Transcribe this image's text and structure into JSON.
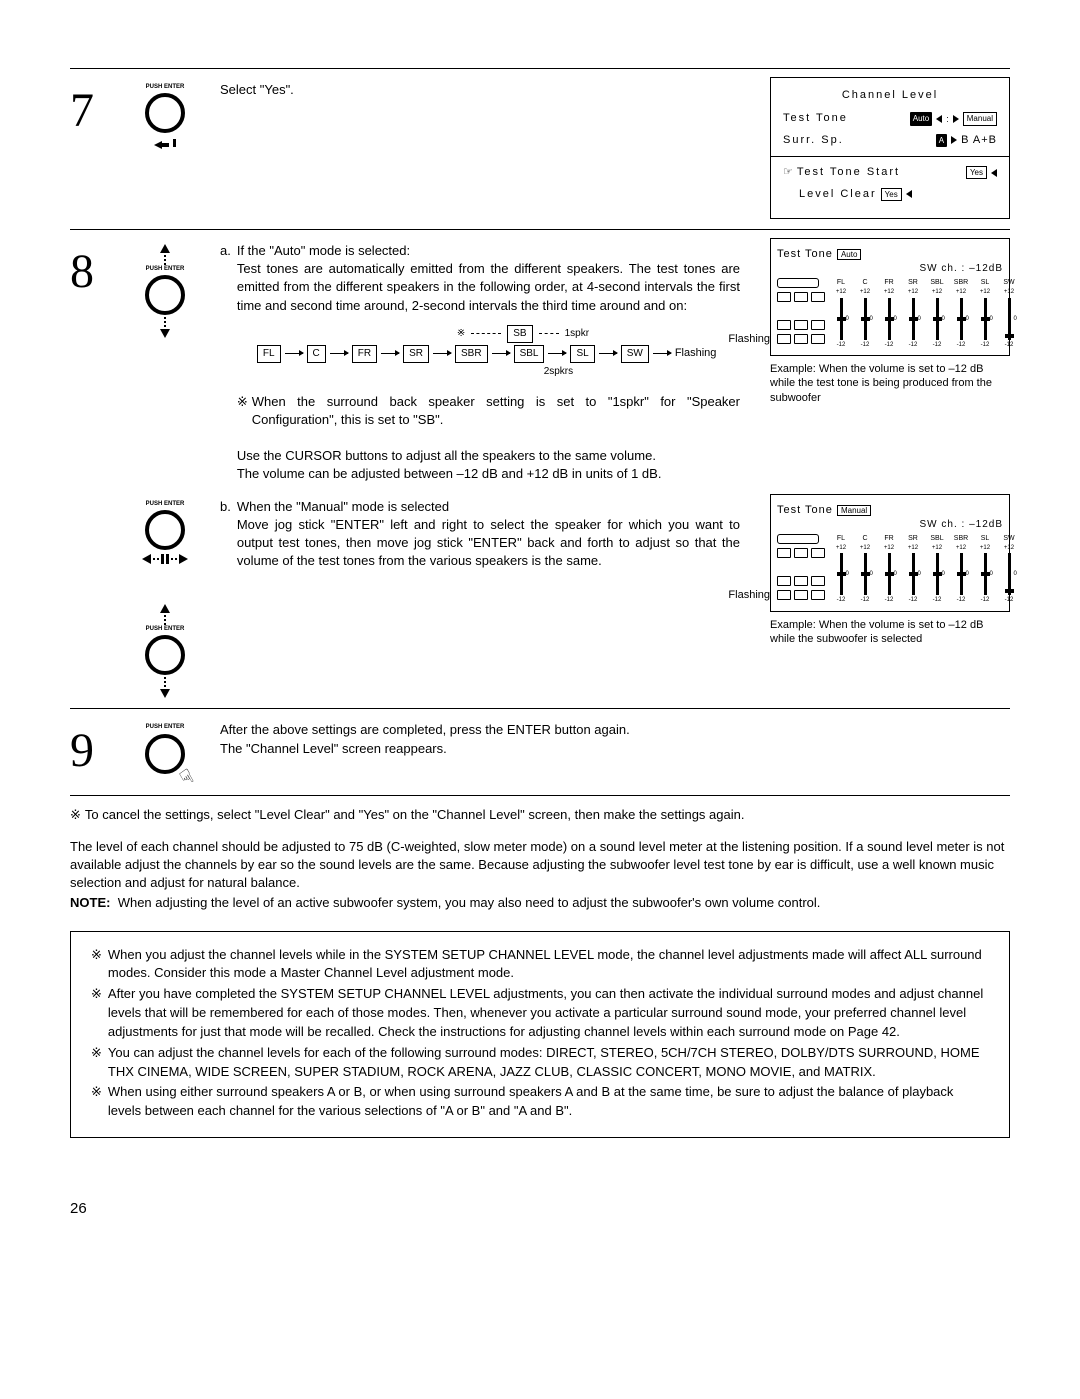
{
  "page_number": "26",
  "step7": {
    "num": "7",
    "text": "Select \"Yes\".",
    "screen": {
      "title": "Channel Level",
      "row1_label": "Test Tone",
      "row1_auto": "Auto",
      "row1_manual": "Manual",
      "row2_label": "Surr. Sp.",
      "row2_a": "A",
      "row2_rest": "B A+B",
      "row3_label": "Test Tone Start",
      "row3_yes": "Yes",
      "row4_label": "Level Clear",
      "row4_yes": "Yes"
    }
  },
  "step8": {
    "num": "8",
    "a_head": "If the \"Auto\" mode is selected:",
    "a_p1": "Test tones are automatically emitted from the different speakers. The test tones are emitted from the different speakers in the following order, at 4-second intervals the first time and second time around, 2-second intervals the third time around and on:",
    "flow_top_label": "1spkr",
    "flow_top_node": "SB",
    "flow_nodes": [
      "FL",
      "C",
      "FR",
      "SR",
      "SBR",
      "SBL",
      "SL",
      "SW"
    ],
    "flow_bot_label": "2spkrs",
    "flow_end": "Flashing",
    "a_note": "When the surround back speaker setting is set to \"1spkr\" for \"Speaker Configuration\", this is set to \"SB\".",
    "a_p2": "Use the CURSOR buttons to adjust all the speakers to the same volume.",
    "a_p3": "The volume can be adjusted between –12 dB and +12 dB in units of 1 dB.",
    "b_head": "When the \"Manual\" mode is selected",
    "b_p1": "Move jog stick \"ENTER\" left and right to select the speaker for which you want to output test tones, then move jog stick \"ENTER\" back and forth to adjust so that the volume of the test tones from the various speakers is the same.",
    "tt_a": {
      "head": "Test Tone",
      "mode": "Auto",
      "sub": "SW ch. : –12dB",
      "labels": [
        "FL",
        "C",
        "FR",
        "SR",
        "SBL",
        "SBR",
        "SL",
        "SW"
      ],
      "caption1": "Example:",
      "caption2": "When the volume is set to –12 dB while the test tone is being produced from the subwoofer",
      "flash": "Flashing"
    },
    "tt_b": {
      "head": "Test Tone",
      "mode": "Manual",
      "sub": "SW ch. : –12dB",
      "labels": [
        "FL",
        "C",
        "FR",
        "SR",
        "SBL",
        "SBR",
        "SL",
        "SW"
      ],
      "caption1": "Example:",
      "caption2": "When the volume is set to –12 dB while the subwoofer is selected",
      "flash": "Flashing"
    }
  },
  "step9": {
    "num": "9",
    "p1": "After the above settings are completed, press the ENTER button again.",
    "p2": "The \"Channel Level\" screen reappears."
  },
  "cancel_note": "To cancel the settings, select \"Level Clear\" and \"Yes\" on the \"Channel Level\" screen, then make the settings again.",
  "para1": "The level of each channel should be adjusted to 75 dB (C-weighted, slow meter mode) on a sound level meter at the listening position. If a sound level meter is not available adjust the channels by ear so the sound levels are the same. Because adjusting the subwoofer level test tone by ear is difficult, use a well known music selection and adjust for natural balance.",
  "para2_label": "NOTE:",
  "para2": "When adjusting the level of an active subwoofer system, you may also need to adjust the subwoofer's own volume control.",
  "box": {
    "b1": "When you adjust the channel levels while in the SYSTEM SETUP CHANNEL LEVEL mode, the channel level adjustments made will affect ALL surround modes. Consider this mode a Master Channel Level adjustment mode.",
    "b2": "After you have completed the SYSTEM SETUP CHANNEL LEVEL adjustments, you can then activate the individual surround modes and adjust channel levels that will be remembered for each of those modes. Then, whenever you activate a particular surround sound mode, your preferred channel level adjustments for just that mode will be recalled. Check the instructions for adjusting channel levels within each surround mode on Page 42.",
    "b3": "You can adjust the channel levels for each of the following surround modes:  DIRECT, STEREO, 5CH/7CH STEREO, DOLBY/DTS SURROUND, HOME THX CINEMA, WIDE SCREEN, SUPER STADIUM, ROCK ARENA, JAZZ CLUB, CLASSIC CONCERT, MONO MOVIE, and MATRIX.",
    "b4": "When using either surround speakers A or B, or when using surround speakers A and B at the same time, be sure to adjust the balance of playback levels between each channel for the various selections of \"A or B\" and \"A and B\"."
  },
  "glyphs": {
    "ref": "※",
    "pointer": "☞"
  },
  "slider_marks": {
    "top": "+12",
    "mid": "0",
    "bot": "-12"
  },
  "push_label": "PUSH ENTER"
}
